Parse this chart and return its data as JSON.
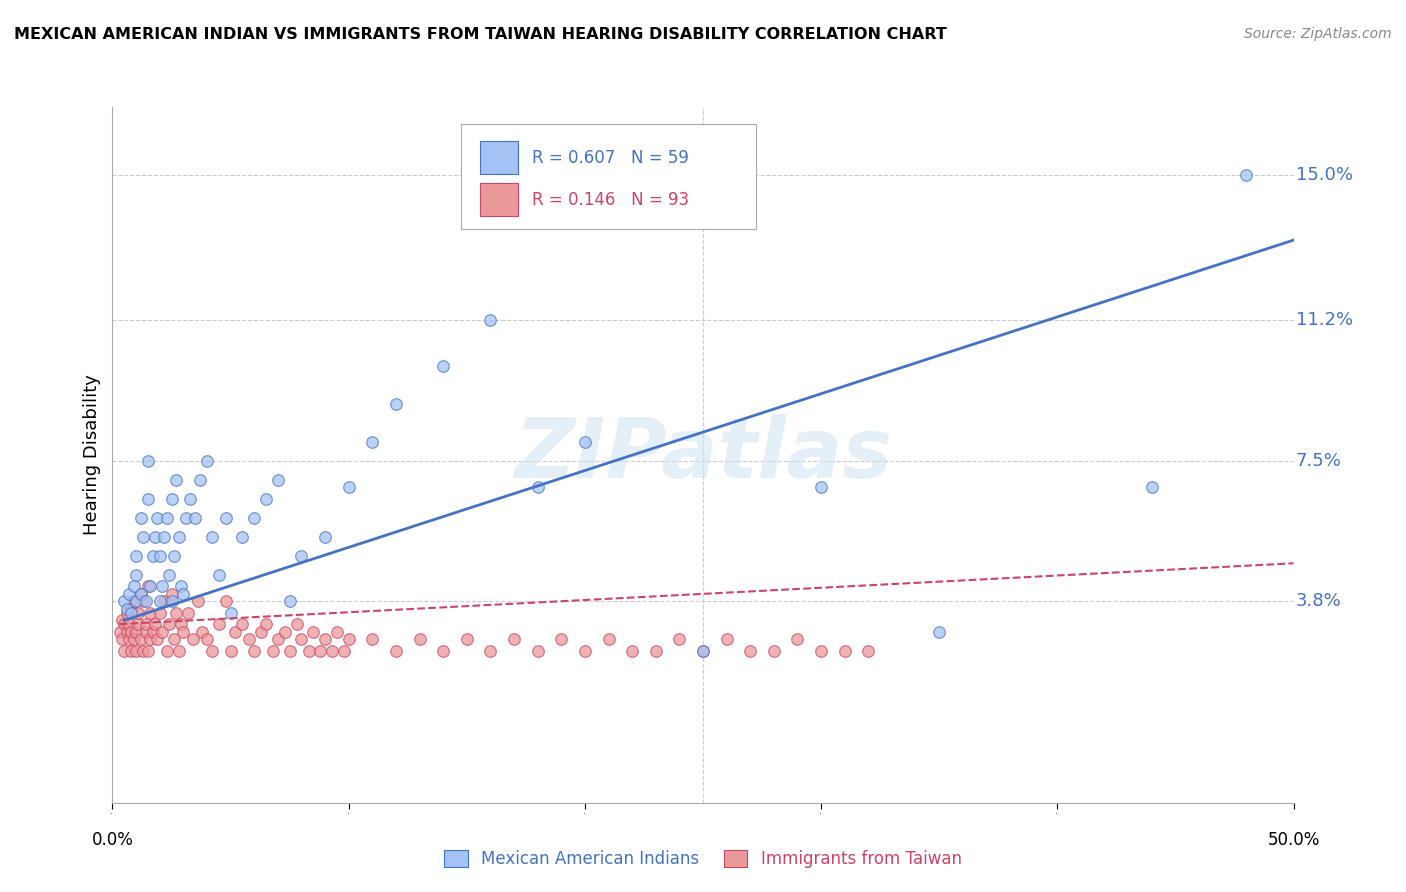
{
  "title": "MEXICAN AMERICAN INDIAN VS IMMIGRANTS FROM TAIWAN HEARING DISABILITY CORRELATION CHART",
  "source": "Source: ZipAtlas.com",
  "ylabel": "Hearing Disability",
  "ytick_labels": [
    "15.0%",
    "11.2%",
    "7.5%",
    "3.8%"
  ],
  "ytick_values": [
    0.15,
    0.112,
    0.075,
    0.038
  ],
  "xlim": [
    0.0,
    0.5
  ],
  "ylim": [
    -0.015,
    0.168
  ],
  "blue_color": "#a4c2f4",
  "pink_color": "#ea9999",
  "line_blue": "#4472c4",
  "line_pink": "#cc4466",
  "axis_color": "#4472c4",
  "watermark": "ZIPatlas",
  "mai_x": [
    0.005,
    0.006,
    0.007,
    0.008,
    0.009,
    0.01,
    0.01,
    0.01,
    0.012,
    0.012,
    0.013,
    0.014,
    0.015,
    0.015,
    0.016,
    0.017,
    0.018,
    0.019,
    0.02,
    0.02,
    0.021,
    0.022,
    0.023,
    0.024,
    0.025,
    0.025,
    0.026,
    0.027,
    0.028,
    0.029,
    0.03,
    0.031,
    0.033,
    0.035,
    0.037,
    0.04,
    0.042,
    0.045,
    0.048,
    0.05,
    0.055,
    0.06,
    0.065,
    0.07,
    0.075,
    0.08,
    0.09,
    0.1,
    0.11,
    0.12,
    0.14,
    0.16,
    0.18,
    0.2,
    0.25,
    0.3,
    0.35,
    0.44,
    0.48
  ],
  "mai_y": [
    0.038,
    0.036,
    0.04,
    0.035,
    0.042,
    0.038,
    0.045,
    0.05,
    0.04,
    0.06,
    0.055,
    0.038,
    0.065,
    0.075,
    0.042,
    0.05,
    0.055,
    0.06,
    0.038,
    0.05,
    0.042,
    0.055,
    0.06,
    0.045,
    0.038,
    0.065,
    0.05,
    0.07,
    0.055,
    0.042,
    0.04,
    0.06,
    0.065,
    0.06,
    0.07,
    0.075,
    0.055,
    0.045,
    0.06,
    0.035,
    0.055,
    0.06,
    0.065,
    0.07,
    0.038,
    0.05,
    0.055,
    0.068,
    0.08,
    0.09,
    0.1,
    0.112,
    0.068,
    0.08,
    0.025,
    0.068,
    0.03,
    0.068,
    0.15
  ],
  "tw_x": [
    0.003,
    0.004,
    0.004,
    0.005,
    0.005,
    0.006,
    0.006,
    0.007,
    0.007,
    0.008,
    0.008,
    0.008,
    0.009,
    0.009,
    0.01,
    0.01,
    0.011,
    0.011,
    0.012,
    0.012,
    0.013,
    0.013,
    0.014,
    0.014,
    0.015,
    0.015,
    0.016,
    0.016,
    0.017,
    0.018,
    0.019,
    0.02,
    0.021,
    0.022,
    0.023,
    0.024,
    0.025,
    0.026,
    0.027,
    0.028,
    0.029,
    0.03,
    0.032,
    0.034,
    0.036,
    0.038,
    0.04,
    0.042,
    0.045,
    0.048,
    0.05,
    0.052,
    0.055,
    0.058,
    0.06,
    0.063,
    0.065,
    0.068,
    0.07,
    0.073,
    0.075,
    0.078,
    0.08,
    0.083,
    0.085,
    0.088,
    0.09,
    0.093,
    0.095,
    0.098,
    0.1,
    0.11,
    0.12,
    0.13,
    0.14,
    0.15,
    0.16,
    0.17,
    0.18,
    0.19,
    0.2,
    0.21,
    0.22,
    0.23,
    0.24,
    0.25,
    0.26,
    0.27,
    0.28,
    0.29,
    0.3,
    0.31,
    0.32
  ],
  "tw_y": [
    0.03,
    0.028,
    0.033,
    0.025,
    0.032,
    0.03,
    0.035,
    0.028,
    0.032,
    0.025,
    0.03,
    0.036,
    0.028,
    0.038,
    0.025,
    0.03,
    0.032,
    0.035,
    0.028,
    0.04,
    0.025,
    0.038,
    0.03,
    0.032,
    0.025,
    0.042,
    0.028,
    0.035,
    0.03,
    0.032,
    0.028,
    0.035,
    0.03,
    0.038,
    0.025,
    0.032,
    0.04,
    0.028,
    0.035,
    0.025,
    0.032,
    0.03,
    0.035,
    0.028,
    0.038,
    0.03,
    0.028,
    0.025,
    0.032,
    0.038,
    0.025,
    0.03,
    0.032,
    0.028,
    0.025,
    0.03,
    0.032,
    0.025,
    0.028,
    0.03,
    0.025,
    0.032,
    0.028,
    0.025,
    0.03,
    0.025,
    0.028,
    0.025,
    0.03,
    0.025,
    0.028,
    0.028,
    0.025,
    0.028,
    0.025,
    0.028,
    0.025,
    0.028,
    0.025,
    0.028,
    0.025,
    0.028,
    0.025,
    0.025,
    0.028,
    0.025,
    0.028,
    0.025,
    0.025,
    0.028,
    0.025,
    0.025,
    0.025
  ],
  "mai_line_x": [
    0.005,
    0.5
  ],
  "mai_line_y": [
    0.033,
    0.133
  ],
  "tw_line_x": [
    0.003,
    0.5
  ],
  "tw_line_y": [
    0.032,
    0.048
  ]
}
